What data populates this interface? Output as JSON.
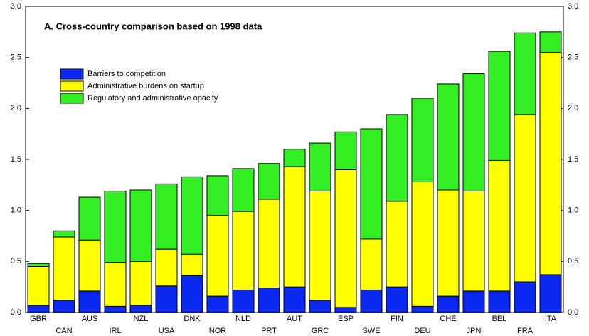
{
  "chart_data": {
    "type": "stacked_bar",
    "title": "A. Cross-country comparison based on 1998 data",
    "categories": [
      "GBR",
      "CAN",
      "AUS",
      "IRL",
      "NZL",
      "USA",
      "DNK",
      "NOR",
      "NLD",
      "PRT",
      "AUT",
      "GRC",
      "ESP",
      "SWE",
      "FIN",
      "DEU",
      "CHE",
      "JPN",
      "BEL",
      "FRA",
      "ITA"
    ],
    "series": [
      {
        "name": "Barriers to competition",
        "color": "#0a28f0",
        "values": [
          0.07,
          0.12,
          0.21,
          0.06,
          0.07,
          0.26,
          0.36,
          0.16,
          0.22,
          0.24,
          0.25,
          0.12,
          0.05,
          0.22,
          0.25,
          0.06,
          0.16,
          0.21,
          0.21,
          0.3,
          0.37
        ]
      },
      {
        "name": "Administrative burdens on startup",
        "color": "#ffff00",
        "values": [
          0.38,
          0.62,
          0.5,
          0.43,
          0.43,
          0.36,
          0.21,
          0.79,
          0.77,
          0.87,
          1.18,
          1.07,
          1.35,
          0.5,
          0.84,
          1.22,
          1.04,
          0.98,
          1.28,
          1.64,
          2.18
        ]
      },
      {
        "name": "Regulatory and administrative opacity",
        "color": "#33ee22",
        "values": [
          0.03,
          0.06,
          0.42,
          0.7,
          0.7,
          0.64,
          0.76,
          0.39,
          0.42,
          0.35,
          0.17,
          0.47,
          0.37,
          1.08,
          0.85,
          0.82,
          1.04,
          1.15,
          1.07,
          0.8,
          0.2
        ]
      }
    ],
    "ylim": [
      0,
      3
    ],
    "yticks": [
      {
        "value": 0,
        "label": "0.0"
      },
      {
        "value": 0.5,
        "label": "0.5"
      },
      {
        "value": 1,
        "label": "1.0"
      },
      {
        "value": 1.5,
        "label": "1.5"
      },
      {
        "value": 2,
        "label": "2.0"
      },
      {
        "value": 2.5,
        "label": "2.5"
      },
      {
        "value": 3,
        "label": "3.0"
      }
    ],
    "secondary_axis_mirror": true,
    "legend": "upper-left"
  }
}
